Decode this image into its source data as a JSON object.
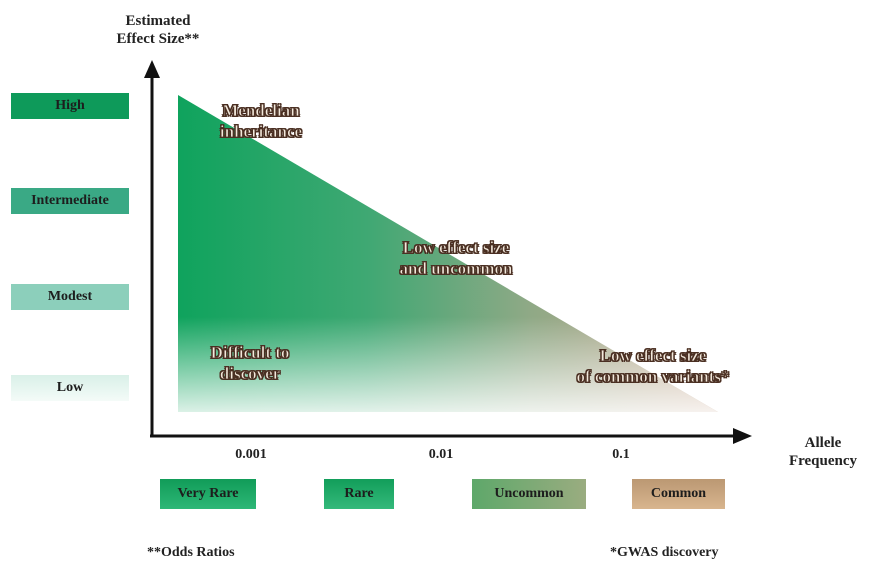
{
  "y_axis_title": [
    "Estimated",
    "Effect Size**"
  ],
  "x_axis_title": [
    "Allele",
    "Frequency"
  ],
  "effect_levels": [
    {
      "label": "High",
      "color": "#0e9a5a"
    },
    {
      "label": "Intermediate",
      "color": "#3aa985"
    },
    {
      "label": "Modest",
      "color": "#8ccfbb"
    },
    {
      "label": "Low",
      "color": "#d5eee6"
    }
  ],
  "x_ticks": [
    "0.001",
    "0.01",
    "0.1"
  ],
  "frequency_categories": [
    {
      "label": "Very Rare",
      "color": "#1aa564"
    },
    {
      "label": "Rare",
      "color": "#25a86a"
    },
    {
      "label": "Uncommon",
      "color": "#7da875"
    },
    {
      "label": "Common",
      "color": "#c9a27a"
    }
  ],
  "regions": {
    "mendelian": [
      "Mendelian",
      "inheritance"
    ],
    "low_uncommon": [
      "Low effect size",
      "and uncommon"
    ],
    "difficult": [
      "Difficult to",
      "discover"
    ],
    "common_variants": [
      "Low effect size",
      "of common variants*"
    ]
  },
  "footnotes": {
    "odds_ratios": "**Odds Ratios",
    "gwas": "*GWAS discovery"
  },
  "colors": {
    "triangle_left": "#0fa35d",
    "triangle_right": "#c8a58a",
    "axis": "#111111"
  }
}
